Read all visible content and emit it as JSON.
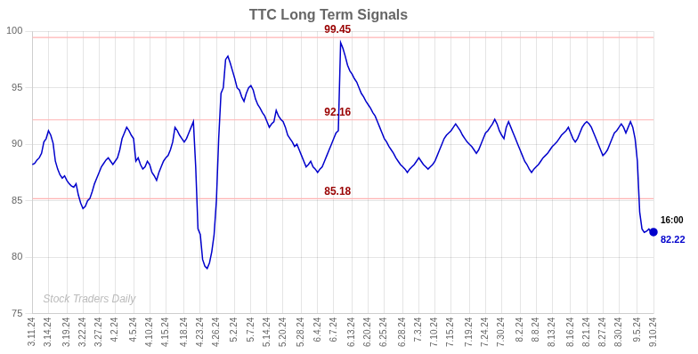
{
  "chart_data": {
    "type": "line",
    "title": "TTC Long Term Signals",
    "color": "#0000cc",
    "ylim": [
      75,
      100
    ],
    "yticks": [
      75,
      80,
      85,
      90,
      95,
      100
    ],
    "grid": true,
    "reference_lines": [
      {
        "value": 99.45,
        "label": "99.45"
      },
      {
        "value": 92.16,
        "label": "92.16"
      },
      {
        "value": 85.18,
        "label": "85.18"
      }
    ],
    "reference_line_color": "#ffb3b3",
    "reference_label_color": "#990000",
    "annotations": {
      "last_time": "16:00",
      "last_value": "82.22",
      "watermark": "Stock Traders Daily"
    },
    "categories": [
      "3.11.24",
      null,
      null,
      null,
      null,
      null,
      null,
      "3.14.24",
      null,
      null,
      null,
      null,
      null,
      null,
      null,
      "3.19.24",
      null,
      null,
      null,
      null,
      null,
      null,
      "3.22.24",
      null,
      null,
      null,
      null,
      null,
      null,
      "3.27.24",
      null,
      null,
      null,
      null,
      null,
      null,
      "4.2.24",
      null,
      null,
      null,
      null,
      null,
      null,
      null,
      "4.5.24",
      null,
      null,
      null,
      null,
      null,
      null,
      "4.10.24",
      null,
      null,
      null,
      null,
      null,
      null,
      "4.15.24",
      null,
      null,
      null,
      null,
      null,
      null,
      null,
      "4.18.24",
      null,
      null,
      null,
      null,
      null,
      null,
      "4.23.24",
      null,
      null,
      null,
      null,
      null,
      null,
      "4.26.24",
      null,
      null,
      null,
      null,
      null,
      null,
      null,
      "5.2.24",
      null,
      null,
      null,
      null,
      null,
      null,
      "5.7.24",
      null,
      null,
      null,
      null,
      null,
      null,
      "5.14.24",
      null,
      null,
      null,
      null,
      null,
      null,
      "5.20.24",
      null,
      null,
      null,
      null,
      null,
      null,
      null,
      "5.28.24",
      null,
      null,
      null,
      null,
      null,
      null,
      "6.4.24",
      null,
      null,
      null,
      null,
      null,
      null,
      "6.7.24",
      null,
      null,
      null,
      null,
      null,
      null,
      null,
      "6.13.24",
      null,
      null,
      null,
      null,
      null,
      null,
      "6.20.24",
      null,
      null,
      null,
      null,
      null,
      null,
      "6.25.24",
      null,
      null,
      null,
      null,
      null,
      null,
      null,
      "6.28.24",
      null,
      null,
      null,
      null,
      null,
      null,
      "7.3.24",
      null,
      null,
      null,
      null,
      null,
      null,
      "7.10.24",
      null,
      null,
      null,
      null,
      null,
      null,
      "7.15.24",
      null,
      null,
      null,
      null,
      null,
      null,
      null,
      "7.19.24",
      null,
      null,
      null,
      null,
      null,
      null,
      "7.24.24",
      null,
      null,
      null,
      null,
      null,
      null,
      "7.30.24",
      null,
      null,
      null,
      null,
      null,
      null,
      null,
      "8.2.24",
      null,
      null,
      null,
      null,
      null,
      null,
      "8.8.24",
      null,
      null,
      null,
      null,
      null,
      null,
      "8.13.24",
      null,
      null,
      null,
      null,
      null,
      null,
      null,
      "8.16.24",
      null,
      null,
      null,
      null,
      null,
      null,
      "8.21.24",
      null,
      null,
      null,
      null,
      null,
      null,
      "8.27.24",
      null,
      null,
      null,
      null,
      null,
      null,
      "8.30.24",
      null,
      null,
      null,
      null,
      null,
      null,
      null,
      "9.5.24",
      null,
      null,
      null,
      null,
      null,
      null,
      "9.10.24"
    ],
    "values": [
      88.2,
      88.3,
      88.6,
      88.8,
      89.2,
      90.2,
      90.5,
      91.2,
      90.8,
      90.1,
      88.5,
      87.8,
      87.3,
      87.0,
      87.2,
      86.8,
      86.5,
      86.3,
      86.2,
      86.5,
      85.5,
      84.8,
      84.3,
      84.5,
      85.0,
      85.2,
      85.8,
      86.5,
      87.0,
      87.5,
      88.0,
      88.3,
      88.6,
      88.8,
      88.5,
      88.2,
      88.5,
      88.8,
      89.5,
      90.5,
      91.0,
      91.5,
      91.2,
      90.8,
      90.5,
      88.5,
      88.8,
      88.2,
      87.8,
      88.0,
      88.5,
      88.2,
      87.5,
      87.2,
      86.8,
      87.5,
      88.0,
      88.5,
      88.8,
      89.0,
      89.5,
      90.2,
      91.5,
      91.2,
      90.8,
      90.5,
      90.2,
      90.5,
      91.0,
      91.5,
      92.0,
      88.0,
      82.5,
      82.0,
      79.8,
      79.2,
      79.0,
      79.5,
      80.5,
      82.0,
      85.0,
      90.5,
      94.5,
      95.0,
      97.5,
      97.8,
      97.2,
      96.5,
      95.8,
      95.0,
      94.8,
      94.2,
      93.8,
      94.5,
      95.0,
      95.2,
      94.8,
      94.0,
      93.5,
      93.2,
      92.8,
      92.5,
      92.0,
      91.5,
      91.8,
      92.0,
      93.0,
      92.5,
      92.2,
      92.0,
      91.5,
      90.8,
      90.5,
      90.2,
      89.8,
      90.0,
      89.5,
      89.0,
      88.5,
      88.0,
      88.2,
      88.5,
      88.0,
      87.8,
      87.5,
      87.8,
      88.0,
      88.5,
      89.0,
      89.5,
      90.0,
      90.5,
      91.0,
      91.2,
      99.0,
      98.5,
      97.8,
      97.0,
      96.5,
      96.2,
      95.8,
      95.5,
      95.0,
      94.5,
      94.2,
      93.8,
      93.5,
      93.2,
      92.8,
      92.5,
      92.0,
      91.5,
      91.0,
      90.5,
      90.2,
      89.8,
      89.5,
      89.2,
      88.8,
      88.5,
      88.2,
      88.0,
      87.8,
      87.5,
      87.8,
      88.0,
      88.2,
      88.5,
      88.8,
      88.5,
      88.2,
      88.0,
      87.8,
      88.0,
      88.2,
      88.5,
      89.0,
      89.5,
      90.0,
      90.5,
      90.8,
      91.0,
      91.2,
      91.5,
      91.8,
      91.5,
      91.2,
      90.8,
      90.5,
      90.2,
      90.0,
      89.8,
      89.5,
      89.2,
      89.5,
      90.0,
      90.5,
      91.0,
      91.2,
      91.5,
      91.8,
      92.2,
      91.8,
      91.2,
      90.8,
      90.5,
      91.5,
      92.0,
      91.5,
      91.0,
      90.5,
      90.0,
      89.5,
      89.0,
      88.5,
      88.2,
      87.8,
      87.5,
      87.8,
      88.0,
      88.2,
      88.5,
      88.8,
      89.0,
      89.2,
      89.5,
      89.8,
      90.0,
      90.2,
      90.5,
      90.8,
      91.0,
      91.2,
      91.5,
      91.0,
      90.5,
      90.2,
      90.5,
      91.0,
      91.5,
      91.8,
      92.0,
      91.8,
      91.5,
      91.0,
      90.5,
      90.0,
      89.5,
      89.0,
      89.2,
      89.5,
      90.0,
      90.5,
      91.0,
      91.2,
      91.5,
      91.8,
      91.5,
      91.0,
      91.5,
      92.0,
      91.5,
      90.5,
      88.5,
      84.0,
      82.5,
      82.2,
      82.3,
      82.5,
      82.2,
      82.22
    ]
  }
}
